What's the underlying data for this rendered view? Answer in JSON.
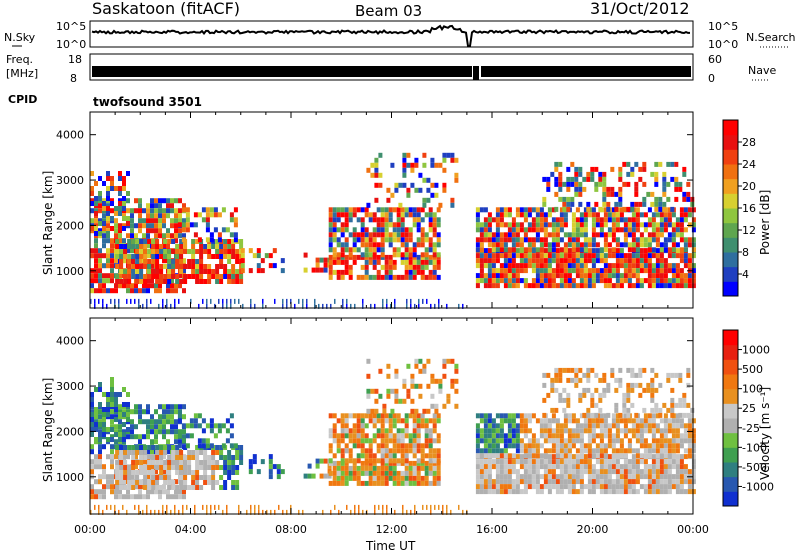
{
  "header": {
    "station": "Saskatoon (fitACF)",
    "beam": "Beam 03",
    "date": "31/Oct/2012"
  },
  "summary": {
    "nsky_label": "N.Sky",
    "nsky_ticks": [
      "10^5",
      "10^0"
    ],
    "nsearch_label": "N.Search",
    "nsearch_ticks": [
      "10^5",
      "10^0"
    ],
    "freq_label_line1": "Freq.",
    "freq_label_line2": "[MHz]",
    "freq_ticks": [
      "18",
      "8"
    ],
    "nave_label": "Nave",
    "nave_ticks": [
      "60",
      "0"
    ],
    "cpid_label": "CPID",
    "cpid_value": "twofsound 3501"
  },
  "colorbars": {
    "power": {
      "label": "Power [dB]",
      "ticks": [
        "28",
        "24",
        "20",
        "16",
        "12",
        "8",
        "4"
      ],
      "colors": [
        "#0000ff",
        "#1f3fc0",
        "#2f6f9f",
        "#3f8f6f",
        "#5fa64f",
        "#8fc63f",
        "#d7d030",
        "#f0a020",
        "#f07010",
        "#f04010",
        "#e81010",
        "#ff0000"
      ]
    },
    "velocity": {
      "label": "Velocity [m s⁻¹]",
      "ticks": [
        "1000",
        "500",
        "100",
        "25",
        "-25",
        "-100",
        "-500",
        "-1000"
      ],
      "colors": [
        "#1030d0",
        "#2858b0",
        "#2f7f80",
        "#3f9f50",
        "#6fc040",
        "#b0b0b0",
        "#c8c8c8",
        "#e89020",
        "#f07810",
        "#f05010",
        "#e82010",
        "#ff0000"
      ]
    }
  },
  "chart_data": [
    {
      "type": "heatmap",
      "title": "Power",
      "ylabel": "Slant Range [km]",
      "yticks": [
        "4000",
        "3000",
        "2000",
        "1000"
      ],
      "ylim": [
        180,
        4500
      ],
      "xlim": [
        0,
        24
      ],
      "xticks": [
        "00:00",
        "04:00",
        "08:00",
        "12:00",
        "16:00",
        "20:00",
        "00:00"
      ],
      "zlim": [
        0,
        30
      ],
      "z_unit": "dB"
    },
    {
      "type": "heatmap",
      "title": "Velocity",
      "ylabel": "Slant Range [km]",
      "yticks": [
        "4000",
        "3000",
        "2000",
        "1000"
      ],
      "ylim": [
        180,
        4500
      ],
      "xlim": [
        0,
        24
      ],
      "xticks": [
        "00:00",
        "04:00",
        "08:00",
        "12:00",
        "16:00",
        "20:00",
        "00:00"
      ],
      "zlim": [
        -1000,
        1000
      ],
      "z_unit": "m s⁻¹",
      "xlabel": "Time UT"
    }
  ]
}
